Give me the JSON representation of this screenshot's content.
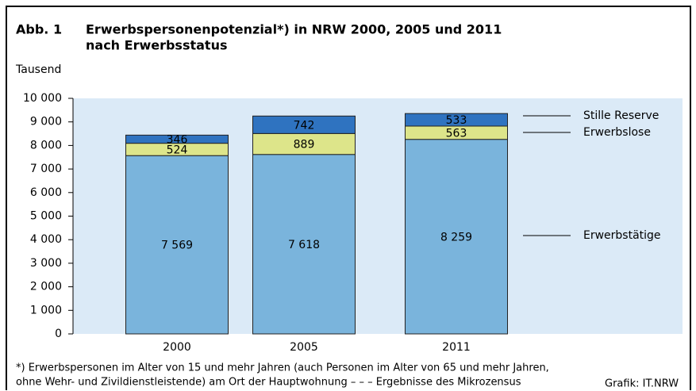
{
  "chart_data": {
    "type": "stacked_bar",
    "title_label": "Abb. 1",
    "title": "Erwerbspersonenpotenzial*) in NRW 2000, 2005 und 2011",
    "subtitle": "nach Erwerbsstatus",
    "y_label": "Tausend",
    "categories": [
      "2000",
      "2005",
      "2011"
    ],
    "series": [
      {
        "name": "Erwerbstätige",
        "color": "#7ab4dc",
        "values": [
          7569,
          7618,
          8259
        ],
        "value_labels": [
          "7 569",
          "7 618",
          "8 259"
        ]
      },
      {
        "name": "Erwerbslose",
        "color": "#dde58a",
        "values": [
          524,
          889,
          563
        ]
      },
      {
        "name": "Stille Reserve",
        "color": "#2f73c0",
        "values": [
          346,
          742,
          533
        ]
      }
    ],
    "ylim": [
      0,
      10000
    ],
    "yticks": [
      0,
      {
        "value": 1000,
        "label": "1 000"
      },
      {
        "value": 2000,
        "label": "2 000"
      },
      {
        "value": 3000,
        "label": "3 000"
      },
      {
        "value": 4000,
        "label": "4 000"
      },
      {
        "value": 5000,
        "label": "5 000"
      },
      {
        "value": 6000,
        "label": "6 000"
      },
      {
        "value": 7000,
        "label": "7 000"
      },
      {
        "value": 8000,
        "label": "8 000"
      },
      {
        "value": 9000,
        "label": "9 000"
      },
      {
        "value": 10000,
        "label": "10 000"
      }
    ],
    "plot_background": "#dbeaf7",
    "footnote": [
      "*) Erwerbspersonen im Alter von 15 und mehr Jahren (auch Personen im Alter von 65 und mehr Jahren,",
      "ohne Wehr- und Zivildienstleistende) am Ort der Hauptwohnung – – – Ergebnisse des Mikrozensus"
    ],
    "source": "Grafik: IT.NRW"
  }
}
